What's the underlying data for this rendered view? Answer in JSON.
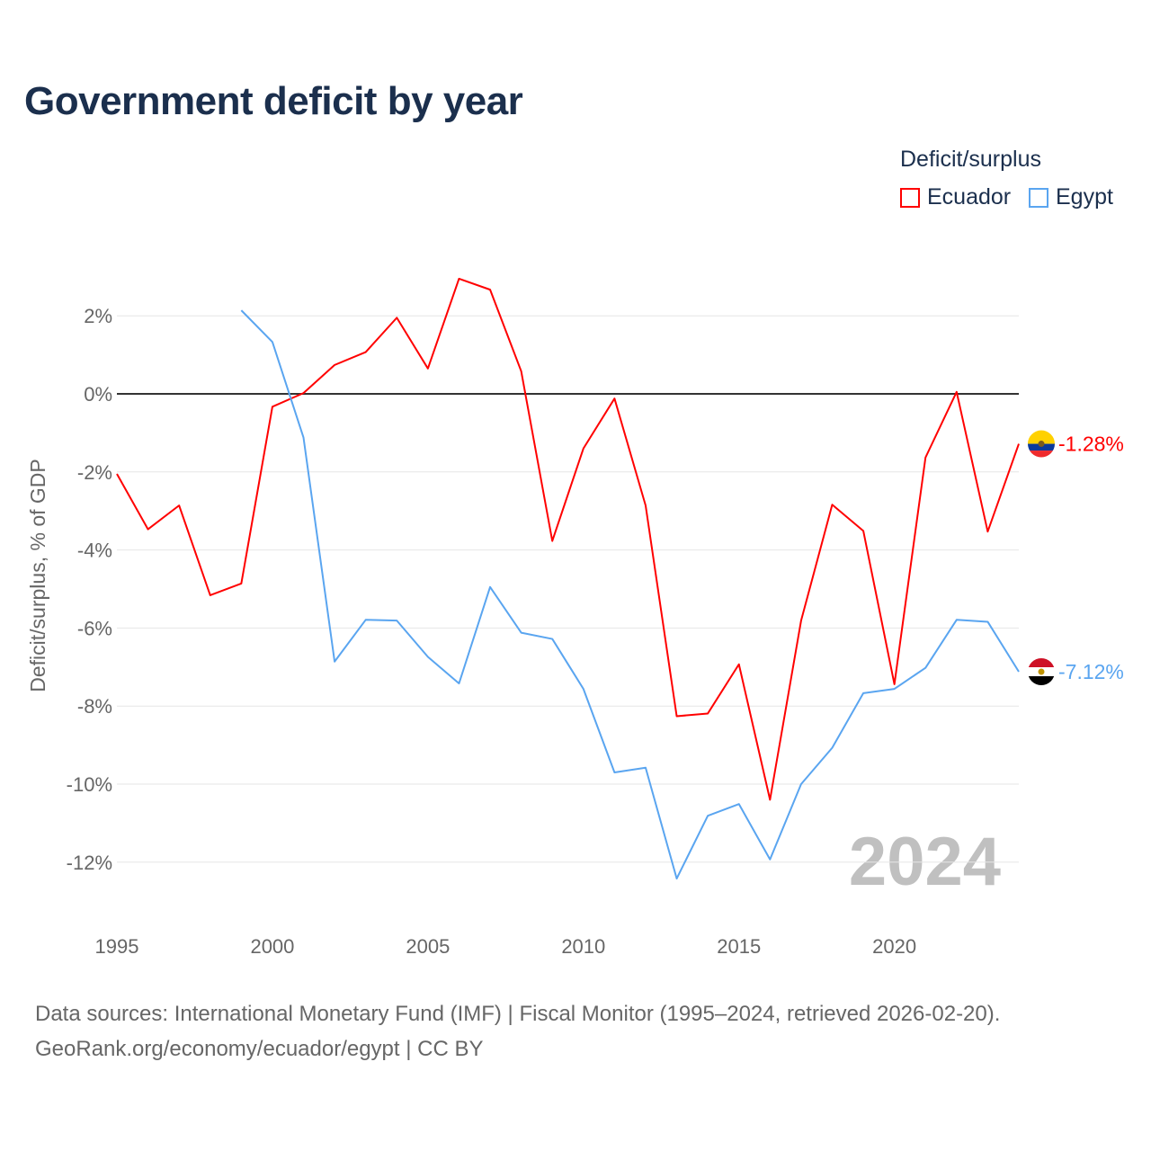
{
  "title": "Government deficit by year",
  "legend": {
    "title": "Deficit/surplus",
    "entries": [
      {
        "name": "Ecuador",
        "color": "#ff0000"
      },
      {
        "name": "Egypt",
        "color": "#5aa5f0"
      }
    ]
  },
  "footer": {
    "line1": "Data sources: International Monetary Fund (IMF) | Fiscal Monitor (1995–2024, retrieved 2026-02-20).",
    "line2": "GeoRank.org/economy/ecuador/egypt | CC BY"
  },
  "chart_data": {
    "type": "line",
    "title": "Government deficit by year",
    "xlabel": "",
    "ylabel": "Deficit/surplus, % of GDP",
    "xlim": [
      1995,
      2024
    ],
    "ylim": [
      -14,
      4
    ],
    "x_ticks": [
      1995,
      2000,
      2005,
      2010,
      2015,
      2020
    ],
    "y_ticks": [
      2,
      0,
      -2,
      -4,
      -6,
      -8,
      -10,
      -12
    ],
    "y_tick_labels": [
      "2%",
      "0%",
      "-2%",
      "-4%",
      "-6%",
      "-8%",
      "-10%",
      "-12%"
    ],
    "year_watermark": "2024",
    "grid": true,
    "legend_position": "top-right",
    "series": [
      {
        "name": "Ecuador",
        "color": "#ff0000",
        "end_label": "-1.28%",
        "x": [
          1995,
          1996,
          1997,
          1998,
          1999,
          2000,
          2001,
          2002,
          2003,
          2004,
          2005,
          2006,
          2007,
          2008,
          2009,
          2010,
          2011,
          2012,
          2013,
          2014,
          2015,
          2016,
          2017,
          2018,
          2019,
          2020,
          2021,
          2022,
          2023,
          2024
        ],
        "values": [
          -2.05,
          -3.47,
          -2.86,
          -5.16,
          -4.86,
          -0.33,
          0.02,
          0.74,
          1.07,
          1.95,
          0.65,
          2.95,
          2.67,
          0.58,
          -3.77,
          -1.4,
          -0.12,
          -2.86,
          -8.26,
          -8.19,
          -6.93,
          -10.4,
          -5.81,
          -2.84,
          -3.51,
          -7.44,
          -1.63,
          0.05,
          -3.53,
          -1.28
        ]
      },
      {
        "name": "Egypt",
        "color": "#5aa5f0",
        "end_label": "-7.12%",
        "x": [
          1999,
          2000,
          2001,
          2002,
          2003,
          2004,
          2005,
          2006,
          2007,
          2008,
          2009,
          2010,
          2011,
          2012,
          2013,
          2014,
          2015,
          2016,
          2017,
          2018,
          2019,
          2020,
          2021,
          2022,
          2023,
          2024
        ],
        "values": [
          2.14,
          1.33,
          -1.12,
          -6.86,
          -5.79,
          -5.81,
          -6.74,
          -7.42,
          -4.95,
          -6.12,
          -6.28,
          -7.56,
          -9.7,
          -9.58,
          -12.42,
          -10.81,
          -10.51,
          -11.93,
          -10.0,
          -9.07,
          -7.67,
          -7.56,
          -7.02,
          -5.79,
          -5.84,
          -7.12
        ]
      }
    ]
  }
}
